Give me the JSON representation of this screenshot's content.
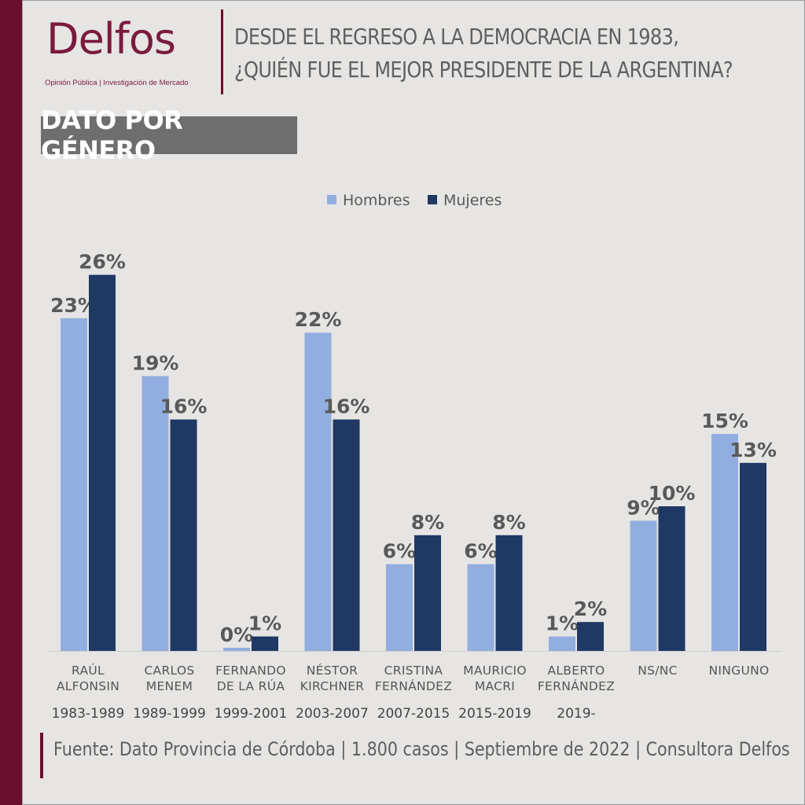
{
  "brand": {
    "name": "Delfos",
    "tagline": "Opinión Pública | Investigación de Mercado"
  },
  "headline": {
    "line1": "DESDE EL REGRESO A LA DEMOCRACIA EN 1983,",
    "line2": "¿QUIÉN FUE EL MEJOR PRESIDENTE DE LA ARGENTINA?"
  },
  "subtitle": "DATO POR GÉNERO",
  "source": "Fuente: Dato Provincia de Córdoba | 1.800 casos | Septiembre de 2022 | Consultora Delfos",
  "colors": {
    "brand": "#6b0f2e",
    "hombres": "#92aee0",
    "mujeres": "#1f3864",
    "label": "#595959"
  },
  "chart_data": {
    "type": "bar",
    "ylim": [
      0,
      30
    ],
    "categories": [
      {
        "name": [
          "RAÚL",
          "ALFONSIN"
        ],
        "period": "1983-1989"
      },
      {
        "name": [
          "CARLOS",
          "MENEM"
        ],
        "period": "1989-1999"
      },
      {
        "name": [
          "FERNANDO",
          "DE LA RÚA"
        ],
        "period": "1999-2001"
      },
      {
        "name": [
          "NÉSTOR",
          "KIRCHNER"
        ],
        "period": "2003-2007"
      },
      {
        "name": [
          "CRISTINA",
          "FERNÁNDEZ"
        ],
        "period": "2007-2015"
      },
      {
        "name": [
          "MAURICIO",
          "MACRI"
        ],
        "period": "2015-2019"
      },
      {
        "name": [
          "ALBERTO",
          "FERNÁNDEZ"
        ],
        "period": "2019-"
      },
      {
        "name": [
          "NS/NC"
        ],
        "period": ""
      },
      {
        "name": [
          "NINGUNO"
        ],
        "period": ""
      }
    ],
    "series": [
      {
        "name": "Hombres",
        "values": [
          23,
          19,
          0,
          22,
          6,
          6,
          1,
          9,
          15
        ],
        "labels": [
          "23%",
          "19%",
          "0%",
          "22%",
          "6%",
          "6%",
          "1%",
          "9%",
          "15%"
        ]
      },
      {
        "name": "Mujeres",
        "values": [
          26,
          16,
          1,
          16,
          8,
          8,
          2,
          10,
          13
        ],
        "labels": [
          "26%",
          "16%",
          "1%",
          "16%",
          "8%",
          "8%",
          "2%",
          "10%",
          "13%"
        ]
      }
    ]
  }
}
